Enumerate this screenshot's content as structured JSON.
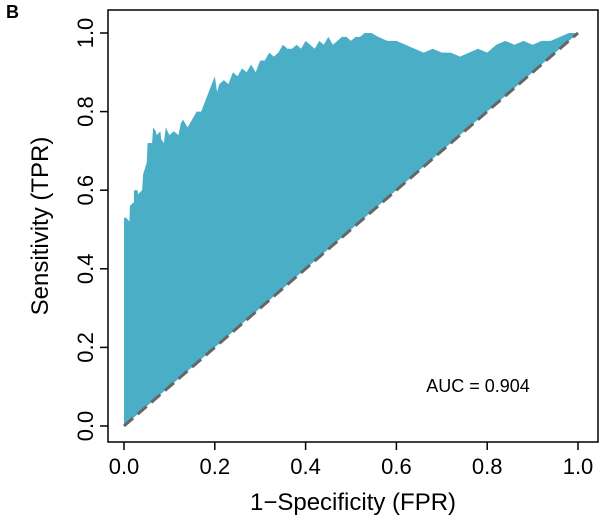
{
  "panel_label": "B",
  "chart_data": {
    "type": "area",
    "xlabel": "1−Specificity (FPR)",
    "ylabel": "Sensitivity (TPR)",
    "xlim": [
      0.0,
      1.0
    ],
    "ylim": [
      0.0,
      1.0
    ],
    "x_ticks": [
      "0.0",
      "0.2",
      "0.4",
      "0.6",
      "0.8",
      "1.0"
    ],
    "y_ticks": [
      "0.0",
      "0.2",
      "0.4",
      "0.6",
      "0.8",
      "1.0"
    ],
    "annotation": "AUC = 0.904",
    "fill_color": "#4aafc6",
    "diagonal_color": "#666666",
    "grid": false,
    "series": [
      {
        "x": [
          0.0,
          0.0,
          0.005,
          0.012,
          0.013,
          0.022,
          0.022,
          0.03,
          0.031,
          0.04,
          0.042,
          0.05,
          0.052,
          0.062,
          0.064,
          0.07,
          0.072,
          0.08,
          0.082,
          0.088,
          0.092,
          0.1,
          0.11,
          0.12,
          0.125,
          0.13,
          0.14,
          0.15,
          0.16,
          0.17,
          0.18,
          0.19,
          0.2,
          0.205,
          0.21,
          0.22,
          0.23,
          0.24,
          0.25,
          0.26,
          0.27,
          0.28,
          0.29,
          0.3,
          0.31,
          0.32,
          0.33,
          0.34,
          0.35,
          0.36,
          0.37,
          0.38,
          0.39,
          0.4,
          0.41,
          0.42,
          0.43,
          0.44,
          0.45,
          0.46,
          0.47,
          0.48,
          0.49,
          0.5,
          0.51,
          0.52,
          0.53,
          0.545,
          0.56,
          0.58,
          0.6,
          0.62,
          0.64,
          0.66,
          0.68,
          0.7,
          0.72,
          0.74,
          0.76,
          0.78,
          0.8,
          0.82,
          0.84,
          0.86,
          0.88,
          0.9,
          0.92,
          0.94,
          0.96,
          0.98,
          1.0
        ],
        "y": [
          0.0,
          0.53,
          0.53,
          0.52,
          0.56,
          0.57,
          0.6,
          0.6,
          0.59,
          0.6,
          0.64,
          0.67,
          0.72,
          0.72,
          0.76,
          0.75,
          0.74,
          0.75,
          0.73,
          0.72,
          0.76,
          0.74,
          0.75,
          0.74,
          0.77,
          0.78,
          0.76,
          0.78,
          0.8,
          0.8,
          0.83,
          0.86,
          0.89,
          0.85,
          0.87,
          0.88,
          0.87,
          0.9,
          0.89,
          0.91,
          0.9,
          0.92,
          0.9,
          0.93,
          0.93,
          0.95,
          0.94,
          0.95,
          0.97,
          0.96,
          0.96,
          0.97,
          0.96,
          0.98,
          0.97,
          0.96,
          0.98,
          0.97,
          0.99,
          0.97,
          0.98,
          0.99,
          0.99,
          0.98,
          0.99,
          0.99,
          1.0,
          1.0,
          0.99,
          0.98,
          0.98,
          0.97,
          0.96,
          0.95,
          0.96,
          0.95,
          0.95,
          0.94,
          0.95,
          0.96,
          0.95,
          0.97,
          0.98,
          0.97,
          0.98,
          0.97,
          0.98,
          0.98,
          0.99,
          1.0,
          1.0
        ]
      }
    ]
  }
}
